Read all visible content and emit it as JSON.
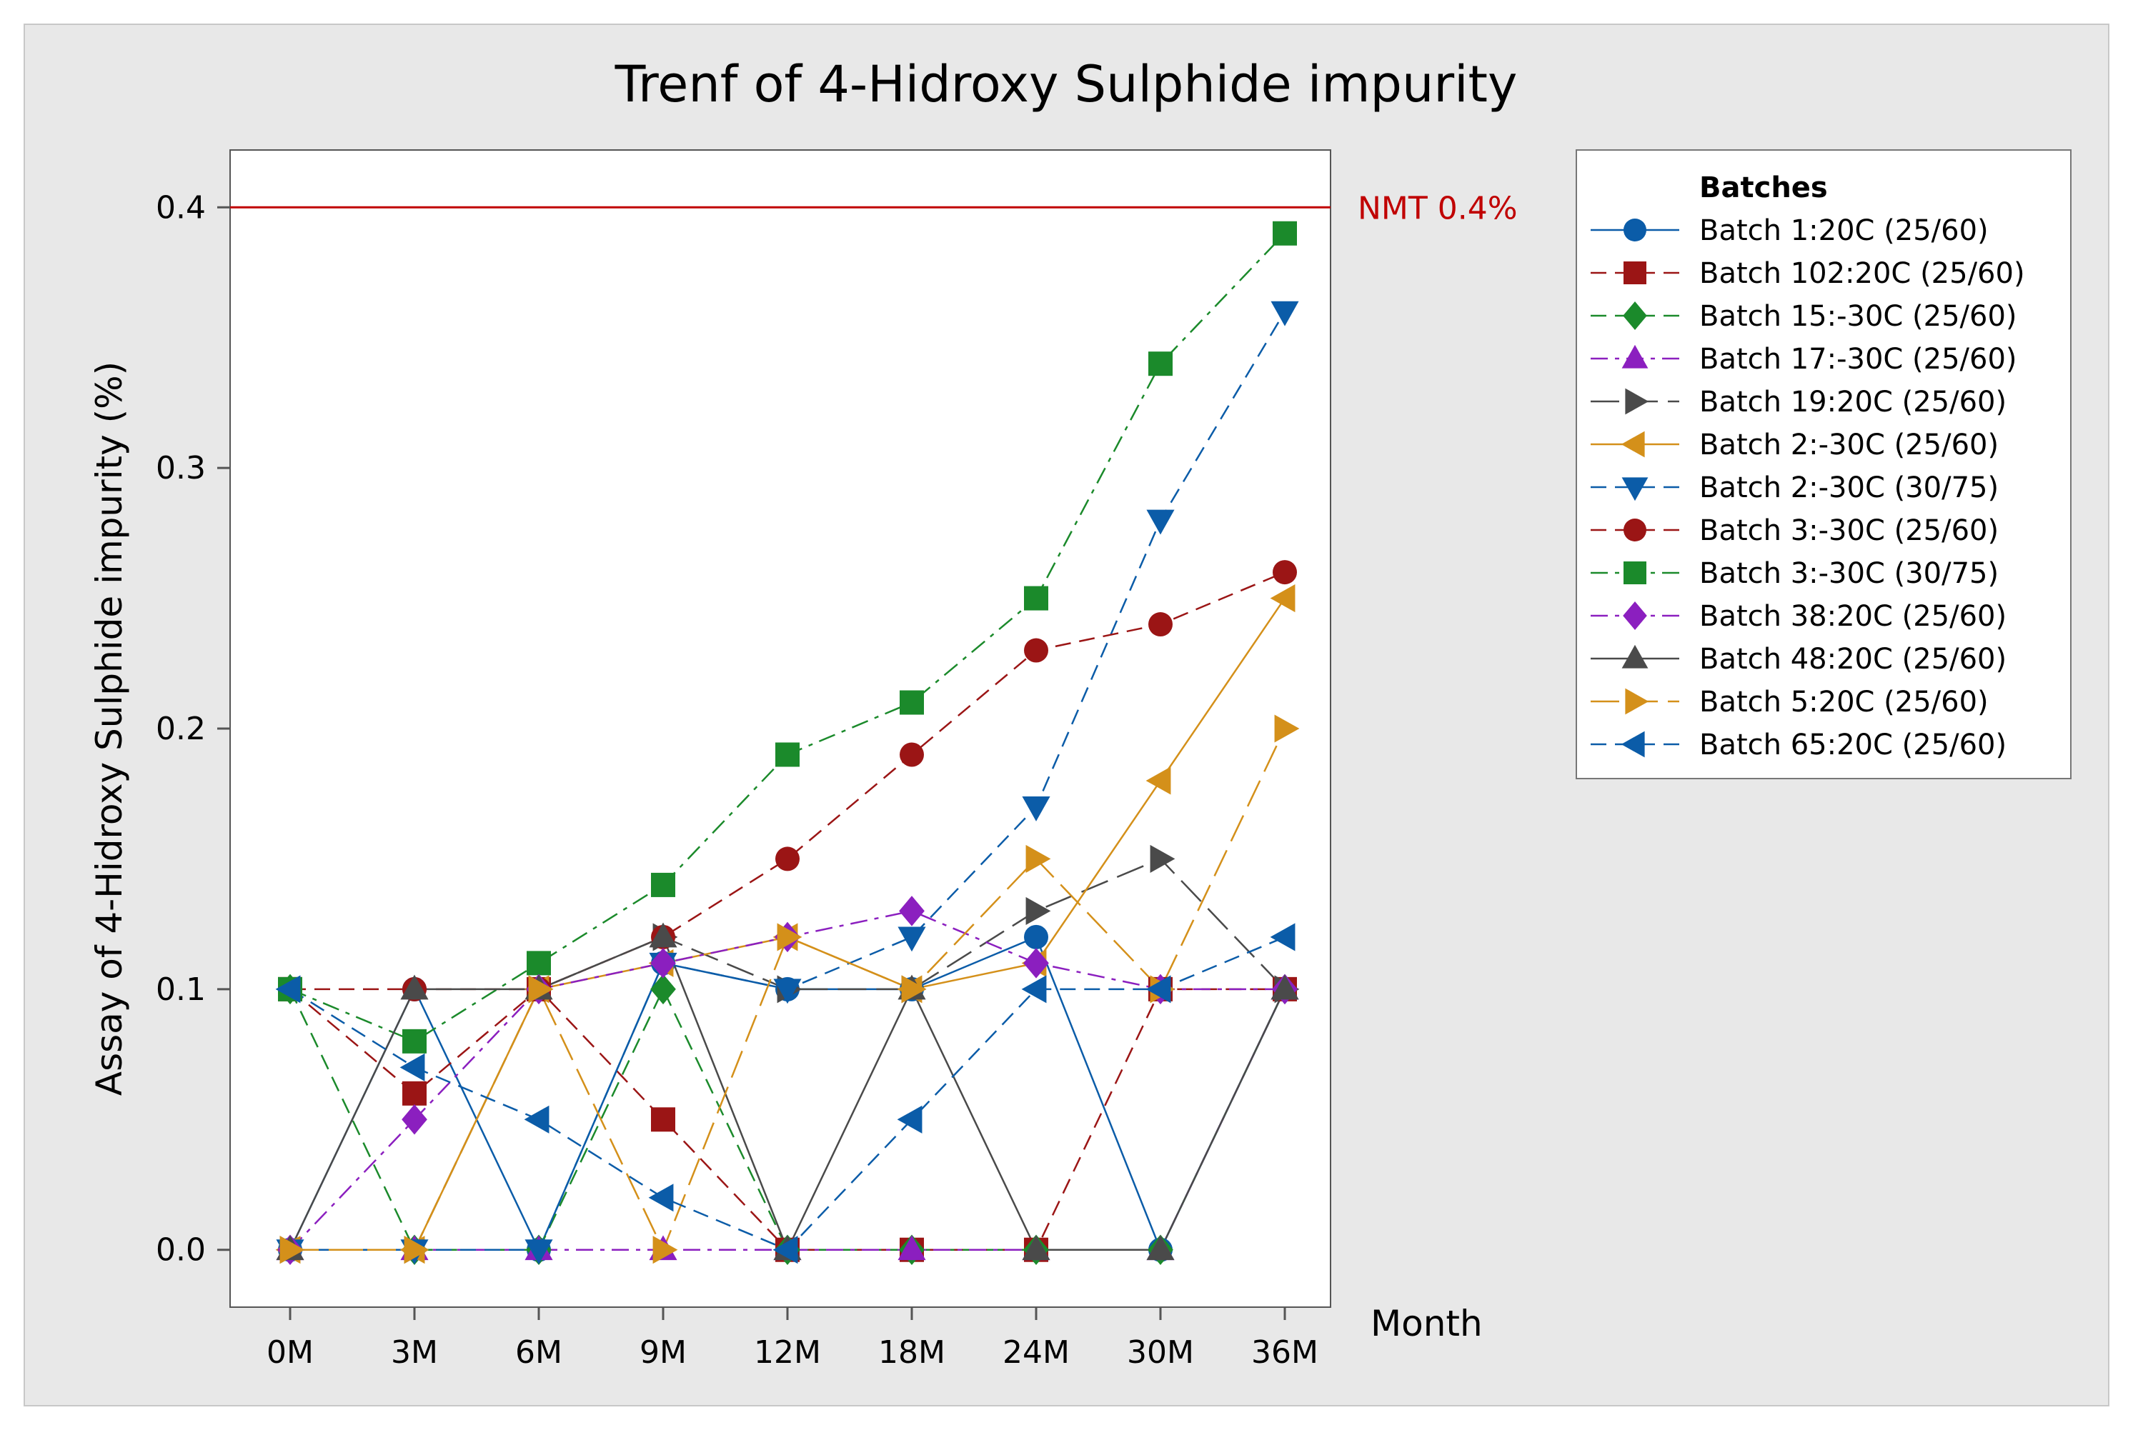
{
  "chart_data": {
    "type": "line",
    "title": "Trenf of 4-Hidroxy Sulphide impurity",
    "xlabel": "Month",
    "ylabel": "Assay of 4-Hidroxy Sulphide impurity (%)",
    "categories": [
      "0M",
      "3M",
      "6M",
      "9M",
      "12M",
      "18M",
      "24M",
      "30M",
      "36M"
    ],
    "ylim": [
      -0.022,
      0.422
    ],
    "yticks": [
      0.0,
      0.1,
      0.2,
      0.3,
      0.4
    ],
    "ytick_labels": [
      "0.0",
      "0.1",
      "0.2",
      "0.3",
      "0.4"
    ],
    "reference_line": {
      "value": 0.4,
      "label": "NMT 0.4%",
      "color": "#c00000"
    },
    "legend": {
      "title": "Batches",
      "position": "right"
    },
    "background": "#e8e8e8",
    "plot_background": "#ffffff",
    "series": [
      {
        "name": "Batch 1:20C (25/60)",
        "color": "#0b5ca8",
        "marker": "circle",
        "dash": "solid",
        "values": [
          0,
          0.1,
          0,
          0.11,
          0.1,
          0.1,
          0.12,
          0,
          0.1
        ]
      },
      {
        "name": "Batch 102:20C (25/60)",
        "color": "#9b1515",
        "marker": "square",
        "dash": "dash",
        "values": [
          0.1,
          0.06,
          0.1,
          0.05,
          0,
          0,
          0,
          0.1,
          0.1
        ]
      },
      {
        "name": "Batch 15:-30C (25/60)",
        "color": "#1b8a2b",
        "marker": "diamond",
        "dash": "dash",
        "values": [
          0.1,
          0,
          0,
          0.1,
          0,
          0,
          0,
          0,
          0.1
        ]
      },
      {
        "name": "Batch 17:-30C (25/60)",
        "color": "#8b1fbf",
        "marker": "triangle-up",
        "dash": "dashdot",
        "values": [
          0,
          0,
          0,
          0,
          0,
          0,
          0,
          0,
          0.1
        ]
      },
      {
        "name": "Batch 19:20C (25/60)",
        "color": "#4a4a4a",
        "marker": "triangle-right",
        "dash": "longdash",
        "values": [
          0,
          0,
          0.1,
          0.12,
          0.1,
          0.1,
          0.13,
          0.15,
          0.1
        ]
      },
      {
        "name": "Batch 2:-30C (25/60)",
        "color": "#d4901a",
        "marker": "triangle-left",
        "dash": "solid",
        "values": [
          0,
          0,
          0.1,
          0.11,
          0.12,
          0.1,
          0.11,
          0.18,
          0.25
        ]
      },
      {
        "name": "Batch 2:-30C (30/75)",
        "color": "#0b5ca8",
        "marker": "triangle-down",
        "dash": "dash",
        "values": [
          0,
          0,
          0,
          0.11,
          0.1,
          0.12,
          0.17,
          0.28,
          0.36
        ]
      },
      {
        "name": "Batch 3:-30C (25/60)",
        "color": "#9b1515",
        "marker": "circle",
        "dash": "dash",
        "values": [
          0.1,
          0.1,
          0.1,
          0.12,
          0.15,
          0.19,
          0.23,
          0.24,
          0.26
        ]
      },
      {
        "name": "Batch 3:-30C (30/75)",
        "color": "#1b8a2b",
        "marker": "square",
        "dash": "dashdot",
        "values": [
          0.1,
          0.08,
          0.11,
          0.14,
          0.19,
          0.21,
          0.25,
          0.34,
          0.39
        ]
      },
      {
        "name": "Batch 38:20C (25/60)",
        "color": "#8b1fbf",
        "marker": "diamond",
        "dash": "dashdot",
        "values": [
          0,
          0.05,
          0.1,
          0.11,
          0.12,
          0.13,
          0.11,
          0.1,
          0.1
        ]
      },
      {
        "name": "Batch 48:20C (25/60)",
        "color": "#4a4a4a",
        "marker": "triangle-up",
        "dash": "solid",
        "values": [
          0,
          0.1,
          0.1,
          0.12,
          0,
          0.1,
          0,
          0,
          0.1
        ]
      },
      {
        "name": "Batch 5:20C (25/60)",
        "color": "#d4901a",
        "marker": "triangle-right",
        "dash": "longdash",
        "values": [
          0,
          0,
          0.1,
          0,
          0.12,
          0.1,
          0.15,
          0.1,
          0.2
        ]
      },
      {
        "name": "Batch 65:20C (25/60)",
        "color": "#0b5ca8",
        "marker": "triangle-left",
        "dash": "dash",
        "values": [
          0.1,
          0.07,
          0.05,
          0.02,
          0,
          0.05,
          0.1,
          0.1,
          0.12
        ]
      }
    ]
  }
}
